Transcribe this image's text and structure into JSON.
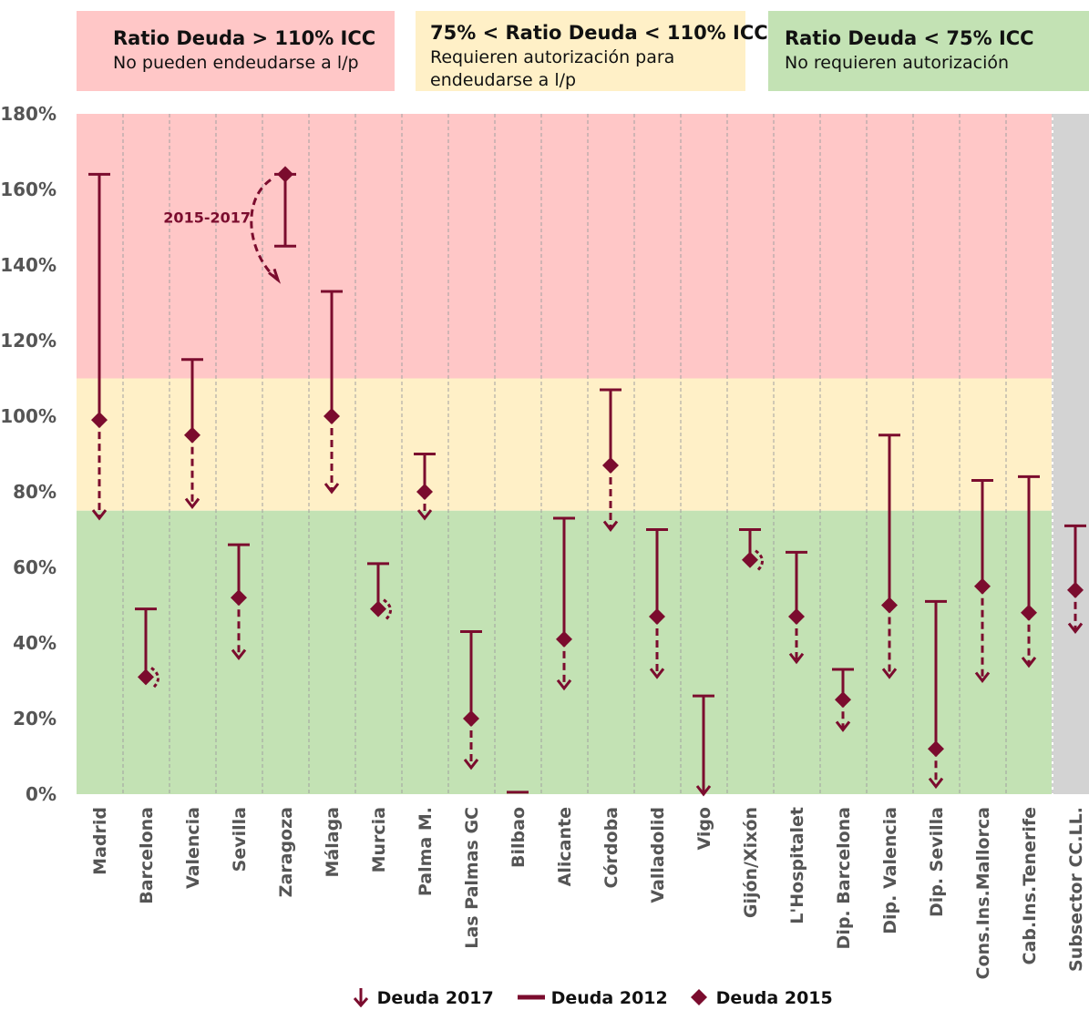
{
  "zones": {
    "red": {
      "title": "Ratio Deuda > 110% ICC",
      "subtitle": "No pueden endeudarse a l/p",
      "color": "#ffc7c7"
    },
    "yellow": {
      "title": "75% < Ratio Deuda < 110% ICC",
      "subtitle": "Requieren autorización para\nendeudarse a l/p",
      "color": "#fff0c7"
    },
    "green": {
      "title": "Ratio Deuda  < 75% ICC",
      "subtitle": "No requieren autorización",
      "color": "#c3e2b4"
    },
    "subsector_color": "#d3d3d3"
  },
  "chart_data": {
    "type": "range",
    "ylim": [
      0,
      180
    ],
    "y_ticks": [
      "0%",
      "20%",
      "40%",
      "60%",
      "80%",
      "100%",
      "120%",
      "140%",
      "160%",
      "180%"
    ],
    "thresholds": [
      75,
      110
    ],
    "annotation": {
      "label": "2015-2017",
      "entity": "Zaragoza"
    },
    "color": "#7b0c2e",
    "series_names": [
      "Deuda 2017",
      "Deuda 2012",
      "Deuda 2015"
    ],
    "categories": [
      "Madrid",
      "Barcelona",
      "Valencia",
      "Sevilla",
      "Zaragoza",
      "Málaga",
      "Murcia",
      "Palma M.",
      "Las Palmas GC",
      "Bilbao",
      "Alicante",
      "Córdoba",
      "Valladolid",
      "Vigo",
      "Gijón/Xixón",
      "L'Hospitalet",
      "Dip. Barcelona",
      "Dip. Valencia",
      "Dip. Sevilla",
      "Cons.Ins.Mallorca",
      "Cab.Ins.Tenerife",
      "Subsector CC.LL."
    ],
    "deuda_2012": [
      164,
      49,
      115,
      66,
      164,
      133,
      61,
      90,
      43,
      0.5,
      73,
      107,
      70,
      26,
      70,
      64,
      33,
      95,
      51,
      83,
      84,
      71
    ],
    "deuda_2015": [
      99,
      31,
      95,
      52,
      145,
      100,
      49,
      80,
      20,
      null,
      41,
      87,
      47,
      null,
      62,
      47,
      25,
      50,
      12,
      55,
      48,
      54
    ],
    "deuda_2017": [
      73,
      30,
      76,
      36,
      null,
      80,
      50,
      73,
      7,
      null,
      28,
      70,
      31,
      0,
      62,
      35,
      17,
      31,
      2,
      30,
      34,
      43
    ]
  }
}
